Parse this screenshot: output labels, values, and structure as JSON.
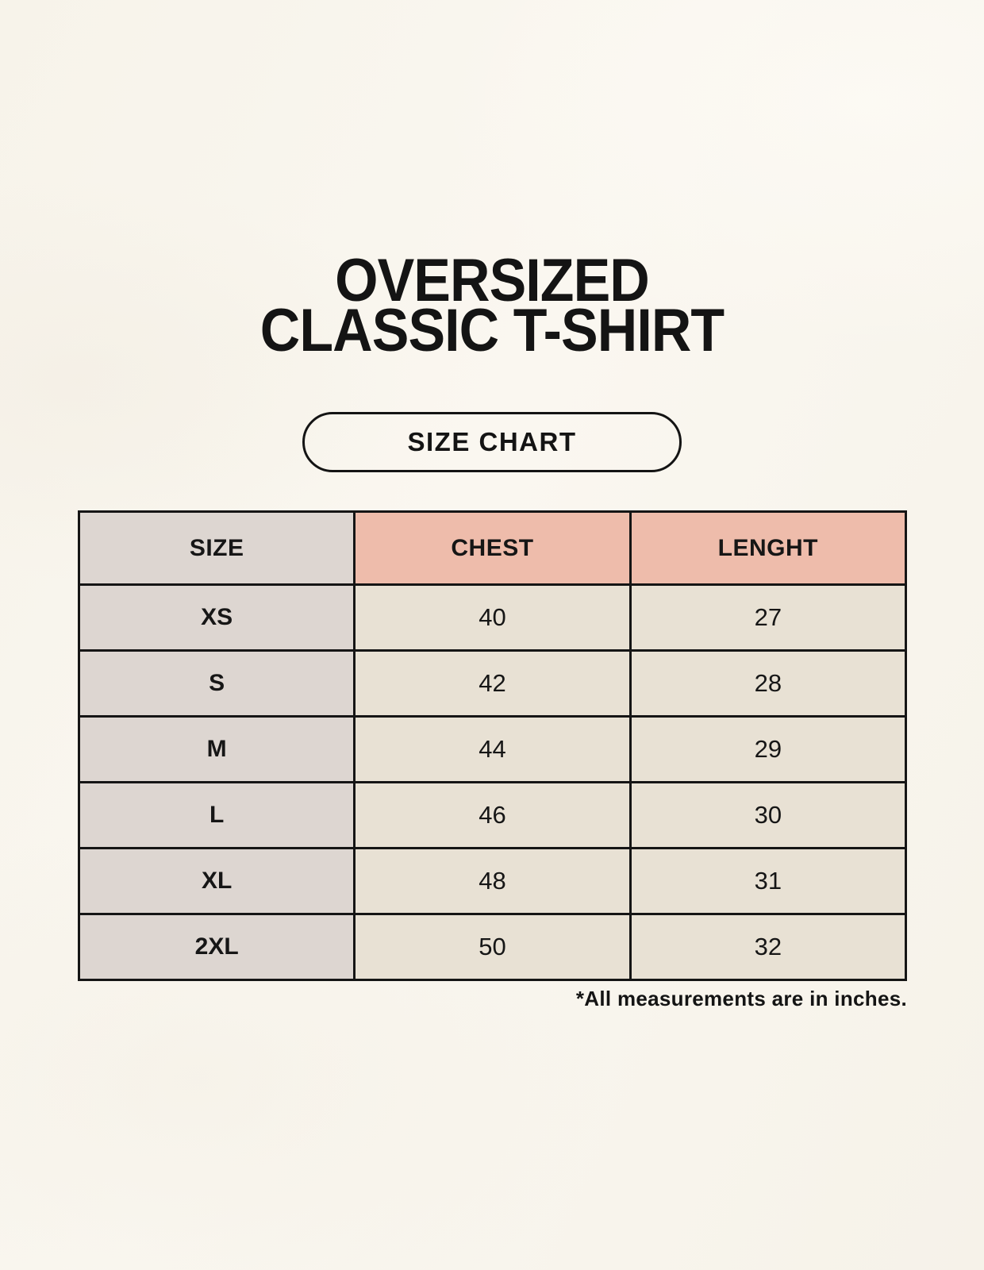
{
  "title": {
    "line1": "OVERSIZED",
    "line2": "CLASSIC T-SHIRT"
  },
  "size_chart_button": {
    "label": "SIZE CHART"
  },
  "footnote": "*All measurements are in inches.",
  "colors": {
    "background": "#f8f5ee",
    "size_column_bg": "#ddd6d1",
    "header_accent_bg": "#eebcab",
    "data_cell_bg": "#e8e1d4",
    "border": "#151515",
    "text": "#141414"
  },
  "chart_data": {
    "type": "table",
    "title": "OVERSIZED CLASSIC T-SHIRT SIZE CHART",
    "columns": [
      "SIZE",
      "CHEST",
      "LENGHT"
    ],
    "units": "inches",
    "rows": [
      {
        "size": "XS",
        "chest": "40",
        "lenght": "27"
      },
      {
        "size": "S",
        "chest": "42",
        "lenght": "28"
      },
      {
        "size": "M",
        "chest": "44",
        "lenght": "29"
      },
      {
        "size": "L",
        "chest": "46",
        "lenght": "30"
      },
      {
        "size": "XL",
        "chest": "48",
        "lenght": "31"
      },
      {
        "size": "2XL",
        "chest": "50",
        "lenght": "32"
      }
    ]
  }
}
